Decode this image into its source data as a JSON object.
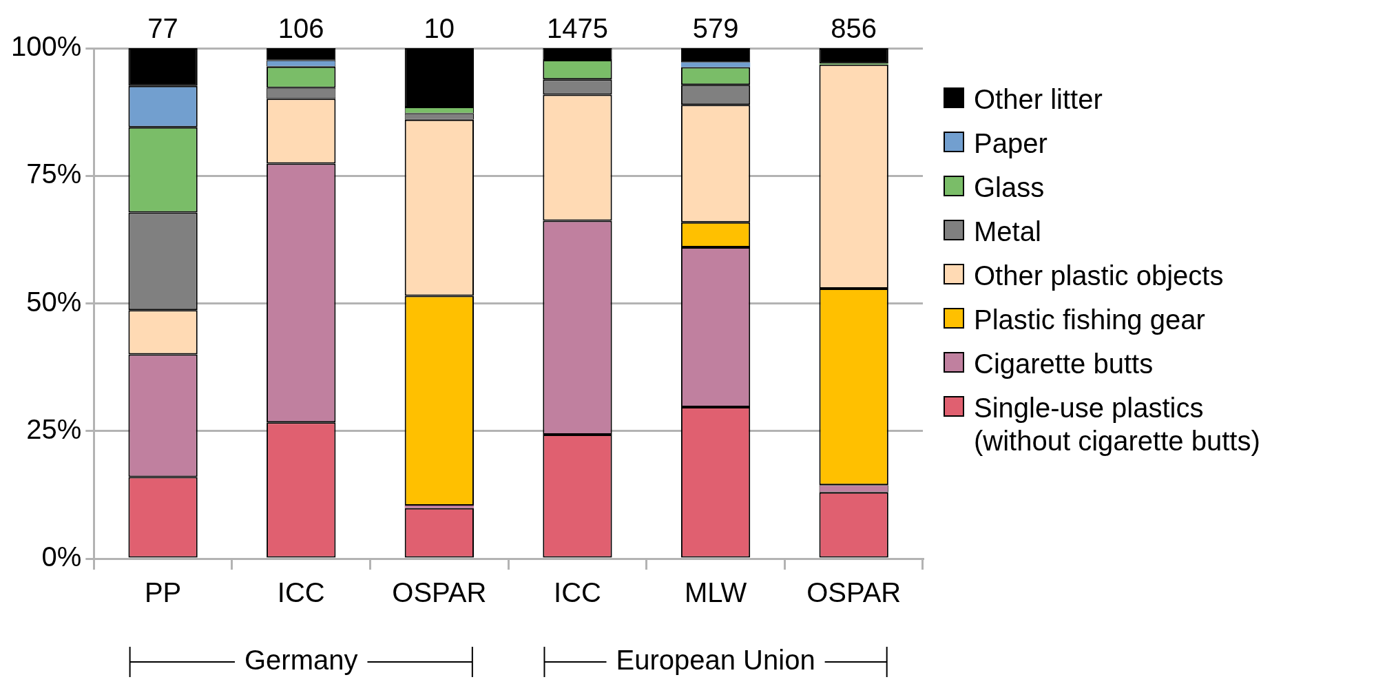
{
  "chart_data": {
    "type": "bar",
    "stacked": true,
    "categories": [
      "PP",
      "ICC",
      "OSPAR",
      "ICC",
      "MLW",
      "OSPAR"
    ],
    "series": [
      {
        "name": "Single-use plastics (without cigarette butts)",
        "color": "#e06070",
        "values": [
          16.0,
          26.7,
          9.9,
          24.3,
          29.7,
          13.0
        ]
      },
      {
        "name": "Cigarette butts",
        "color": "#c0809f",
        "values": [
          24.0,
          50.7,
          0.5,
          41.9,
          31.3,
          1.4
        ]
      },
      {
        "name": "Plastic fishing gear",
        "color": "#ffc000",
        "values": [
          0,
          0,
          41.1,
          0,
          4.9,
          38.5
        ]
      },
      {
        "name": "Other plastic objects",
        "color": "#ffdab4",
        "values": [
          8.7,
          12.7,
          34.5,
          24.7,
          23.0,
          43.9
        ]
      },
      {
        "name": "Metal",
        "color": "#808080",
        "values": [
          19.1,
          2.1,
          1.2,
          3.0,
          3.9,
          0
        ]
      },
      {
        "name": "Glass",
        "color": "#7abd68",
        "values": [
          16.7,
          4.2,
          1.2,
          3.8,
          3.5,
          0.2
        ]
      },
      {
        "name": "Paper",
        "color": "#729fcf",
        "values": [
          8.1,
          1.2,
          0,
          0,
          0.9,
          0
        ]
      },
      {
        "name": "Other litter",
        "color": "#000000",
        "values": [
          7.4,
          2.4,
          11.6,
          2.3,
          2.8,
          3.0
        ]
      }
    ],
    "ylim": [
      0,
      100
    ],
    "yticks": [
      {
        "value": 0,
        "label": "0%"
      },
      {
        "value": 25,
        "label": "25%"
      },
      {
        "value": 50,
        "label": "50%"
      },
      {
        "value": 75,
        "label": "75%"
      },
      {
        "value": 100,
        "label": "100%"
      }
    ],
    "annotations": [
      "77",
      "106",
      "10",
      "1475",
      "579",
      "856",
      "Germany",
      "European Union"
    ],
    "grid": "y",
    "legend": "right"
  }
}
